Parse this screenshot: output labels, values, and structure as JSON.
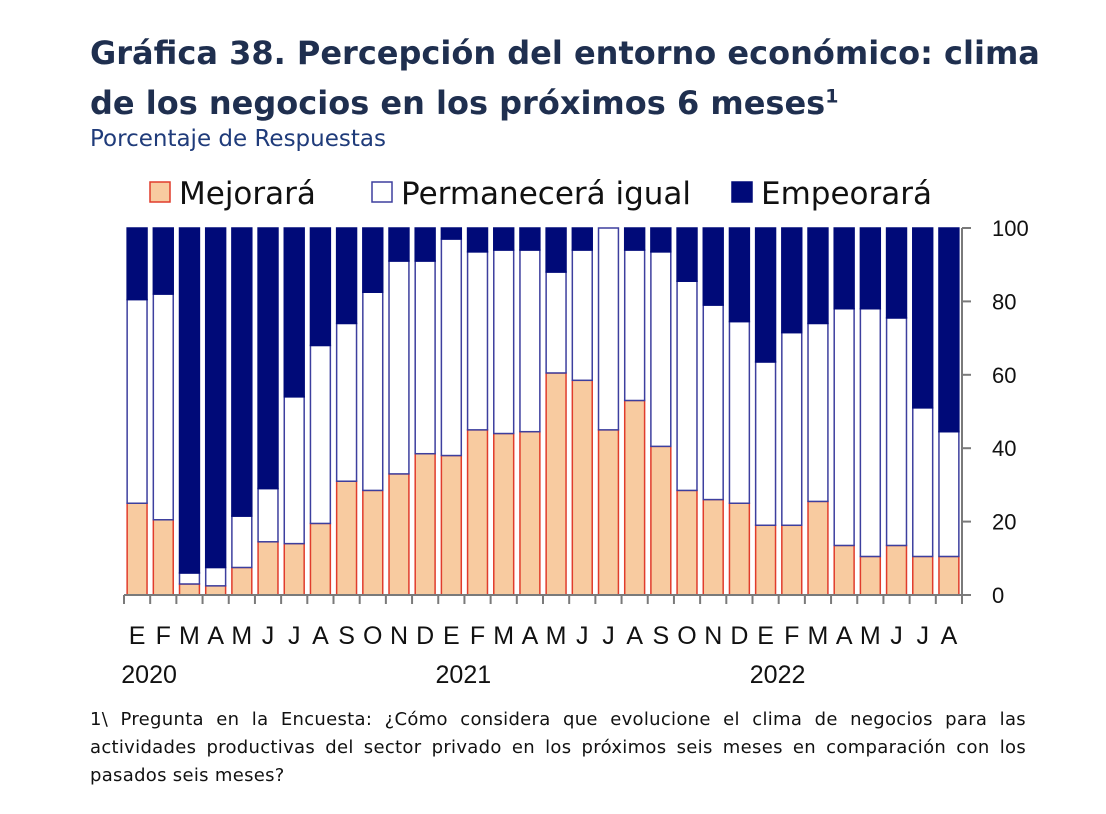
{
  "title": "Gráfica 38. Percepción del entorno económico: clima de los negocios en los próximos 6 meses",
  "title_sup": "1",
  "subtitle": "Porcentaje de Respuestas",
  "footnote": "1\\ Pregunta en la Encuesta: ¿Cómo considera que evolucione el clima de negocios para las actividades productivas del sector privado en los próximos seis meses en comparación con los pasados seis meses?",
  "colors": {
    "mejorara_fill": "#f8cba0",
    "mejorara_stroke": "#e03c2c",
    "permanecera_fill": "#ffffff",
    "permanecera_stroke": "#3d3f9e",
    "empeorara_fill": "#000a78",
    "empeorara_stroke": "#000a78",
    "axis": "#7a7a7a"
  },
  "chart_data": {
    "type": "bar",
    "stacked": true,
    "categories": [
      "E",
      "F",
      "M",
      "A",
      "M",
      "J",
      "J",
      "A",
      "S",
      "O",
      "N",
      "D",
      "E",
      "F",
      "M",
      "A",
      "M",
      "J",
      "J",
      "A",
      "S",
      "O",
      "N",
      "D",
      "E",
      "F",
      "M",
      "A",
      "M",
      "J",
      "J",
      "A"
    ],
    "year_labels": [
      {
        "label": "2020",
        "index": 0
      },
      {
        "label": "2021",
        "index": 12
      },
      {
        "label": "2022",
        "index": 24
      }
    ],
    "series": [
      {
        "name": "Mejorará",
        "color": "#f8cba0",
        "values": [
          25,
          20.5,
          3,
          2.5,
          7.5,
          14.5,
          14,
          19.5,
          31,
          28.5,
          33,
          38.5,
          38,
          45,
          44,
          44.5,
          60.5,
          58.5,
          45,
          53,
          40.5,
          28.5,
          26,
          25,
          19,
          19,
          25.5,
          13.5,
          10.5,
          13.5,
          10.5,
          10.5
        ]
      },
      {
        "name": "Permanecerá igual",
        "color": "#ffffff",
        "values": [
          55.5,
          61.5,
          3,
          5,
          14,
          14.5,
          40,
          48.5,
          43,
          54,
          58,
          52.5,
          59,
          48.5,
          50,
          49.5,
          27.5,
          35.5,
          55,
          41,
          53,
          57,
          53,
          49.5,
          44.5,
          52.5,
          48.5,
          64.5,
          67.5,
          62,
          40.5,
          34
        ]
      },
      {
        "name": "Empeorará",
        "color": "#000a78",
        "values": [
          19.5,
          18,
          94,
          92.5,
          78.5,
          71,
          46,
          32,
          26,
          17.5,
          9,
          9,
          3,
          6.5,
          6,
          6,
          12,
          6,
          0,
          6,
          6.5,
          14.5,
          21,
          25.5,
          36.5,
          28.5,
          26,
          22,
          22,
          24.5,
          49,
          55.5
        ]
      }
    ],
    "ylim": [
      0,
      100
    ],
    "yticks": [
      0,
      20,
      40,
      60,
      80,
      100
    ],
    "y_axis_side": "right",
    "legend_position": "top"
  }
}
